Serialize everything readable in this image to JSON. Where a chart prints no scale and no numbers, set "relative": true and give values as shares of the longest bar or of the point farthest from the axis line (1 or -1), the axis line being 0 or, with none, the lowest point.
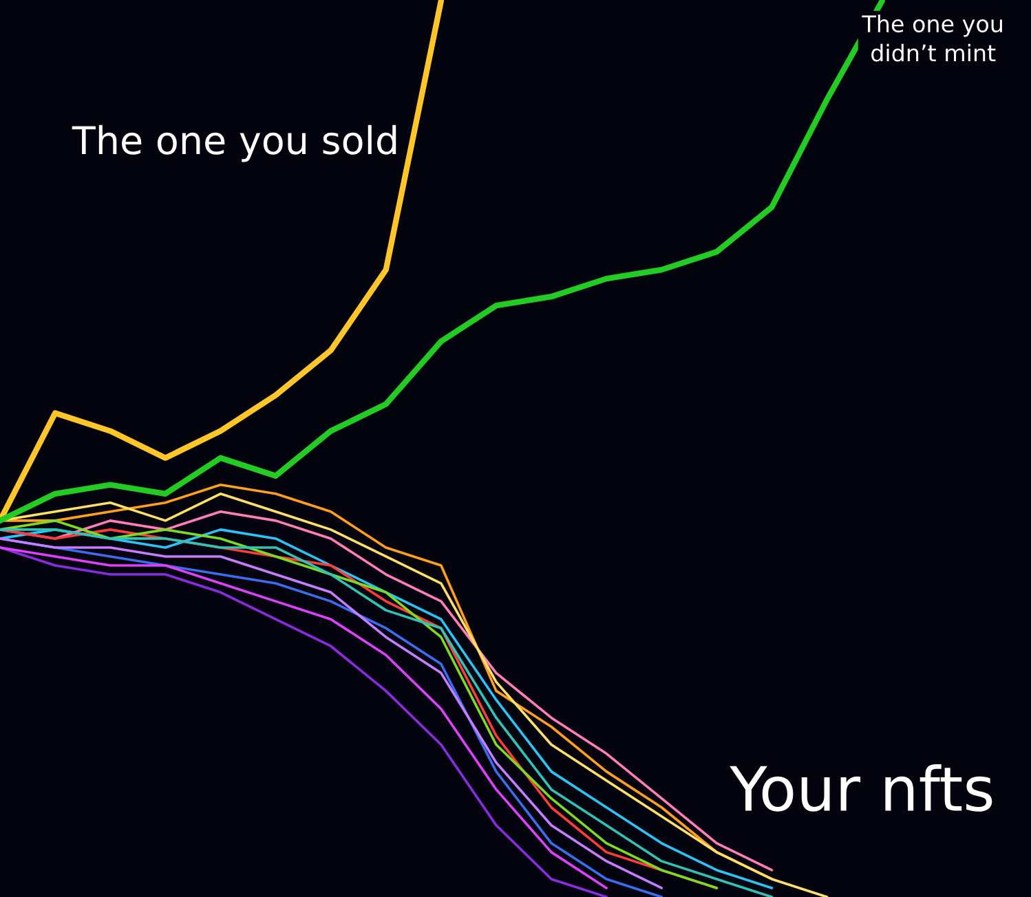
{
  "chart_data": {
    "type": "line",
    "relative": true,
    "categories": [
      null,
      null,
      null,
      null,
      null,
      null,
      null,
      null,
      null,
      null,
      null,
      null,
      null,
      null,
      null,
      null,
      null,
      null,
      null
    ],
    "annotations": [
      "Your nfts"
    ],
    "series": [
      {
        "name": "The one you sold",
        "color": "#ffc629",
        "values": [
          0.42,
          0.54,
          0.52,
          0.49,
          0.52,
          0.56,
          0.61,
          0.7,
          1.0,
          null,
          null,
          null,
          null,
          null,
          null,
          null,
          null,
          null,
          null
        ]
      },
      {
        "name": "The one you\ndidn’t mint",
        "color": "#22cc22",
        "values": [
          0.42,
          0.45,
          0.46,
          0.45,
          0.49,
          0.47,
          0.52,
          0.55,
          0.62,
          0.66,
          0.67,
          0.69,
          0.7,
          0.72,
          0.77,
          0.89,
          1.0,
          null,
          null
        ]
      },
      {
        "color": "#ff9f1c",
        "values": [
          0.42,
          0.42,
          0.43,
          0.44,
          0.46,
          0.45,
          0.43,
          0.39,
          0.37,
          0.23,
          0.19,
          0.14,
          0.1,
          0.05,
          0.02,
          null,
          null,
          null,
          null
        ]
      },
      {
        "color": "#ff7eb6",
        "values": [
          0.41,
          0.4,
          0.42,
          0.41,
          0.43,
          0.42,
          0.4,
          0.36,
          0.33,
          0.25,
          0.2,
          0.16,
          0.11,
          0.06,
          0.03,
          null,
          null,
          null,
          null
        ]
      },
      {
        "color": "#29c5f6",
        "values": [
          0.4,
          0.41,
          0.4,
          0.39,
          0.41,
          0.4,
          0.37,
          0.34,
          0.31,
          0.22,
          0.14,
          0.1,
          0.06,
          0.03,
          0.01,
          null,
          null,
          null,
          null
        ]
      },
      {
        "color": "#8a2be2",
        "values": [
          0.39,
          0.37,
          0.36,
          0.36,
          0.34,
          0.31,
          0.28,
          0.23,
          0.17,
          0.08,
          0.02,
          0,
          null,
          null,
          null,
          null,
          null,
          null,
          null
        ]
      },
      {
        "color": "#3a6df0",
        "values": [
          0.4,
          0.39,
          0.38,
          0.37,
          0.36,
          0.35,
          0.33,
          0.3,
          0.26,
          0.14,
          0.06,
          0.02,
          0,
          null,
          null,
          null,
          null,
          null,
          null
        ]
      },
      {
        "color": "#ff3b3b",
        "values": [
          0.41,
          0.4,
          0.41,
          0.4,
          0.39,
          0.38,
          0.37,
          0.33,
          0.3,
          0.18,
          0.1,
          0.05,
          0.03,
          0.01,
          null,
          null,
          null,
          null,
          null
        ]
      },
      {
        "color": "#7ddc1f",
        "values": [
          0.41,
          0.42,
          0.4,
          0.41,
          0.4,
          0.38,
          0.36,
          0.34,
          0.29,
          0.17,
          0.11,
          0.06,
          0.03,
          0.01,
          null,
          null,
          null,
          null,
          null
        ]
      },
      {
        "color": "#ffe066",
        "values": [
          0.42,
          0.43,
          0.44,
          0.42,
          0.45,
          0.43,
          0.41,
          0.38,
          0.35,
          0.24,
          0.17,
          0.13,
          0.09,
          0.05,
          0.02,
          0,
          null,
          null,
          null
        ]
      },
      {
        "color": "#c77dff",
        "values": [
          0.4,
          0.39,
          0.39,
          0.38,
          0.38,
          0.36,
          0.34,
          0.29,
          0.25,
          0.15,
          0.08,
          0.04,
          0.01,
          null,
          null,
          null,
          null,
          null,
          null
        ]
      },
      {
        "color": "#e040fb",
        "values": [
          0.39,
          0.38,
          0.37,
          0.37,
          0.35,
          0.33,
          0.31,
          0.27,
          0.21,
          0.12,
          0.05,
          0.01,
          null,
          null,
          null,
          null,
          null,
          null,
          null
        ]
      },
      {
        "color": "#2ec4b6",
        "values": [
          0.41,
          0.41,
          0.4,
          0.4,
          0.39,
          0.39,
          0.36,
          0.32,
          0.3,
          0.2,
          0.12,
          0.08,
          0.04,
          0.02,
          0,
          null,
          null,
          null,
          null
        ]
      }
    ]
  }
}
